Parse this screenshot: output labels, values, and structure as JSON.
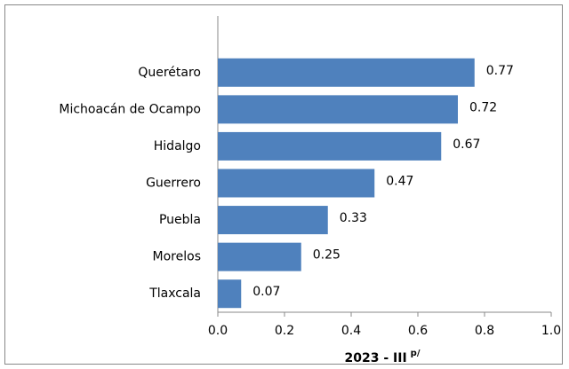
{
  "chart_data": {
    "type": "bar",
    "orientation": "horizontal",
    "categories": [
      "Querétaro",
      "Michoacán de Ocampo",
      "Hidalgo",
      "Guerrero",
      "Puebla",
      "Morelos",
      "Tlaxcala"
    ],
    "values": [
      0.77,
      0.72,
      0.67,
      0.47,
      0.33,
      0.25,
      0.07
    ],
    "color": "#4f81bd",
    "xlim": [
      0,
      1
    ],
    "xticks": [
      {
        "value": 0,
        "label": "0.0"
      },
      {
        "value": 0.2,
        "label": "0.2"
      },
      {
        "value": 0.4,
        "label": "0.4"
      },
      {
        "value": 0.6,
        "label": "0.6"
      },
      {
        "value": 0.8,
        "label": "0.8"
      },
      {
        "value": 1,
        "label": "1.0"
      }
    ],
    "xlabel": {
      "text": "2023 - III",
      "superscript": "p/"
    },
    "grid": false
  }
}
